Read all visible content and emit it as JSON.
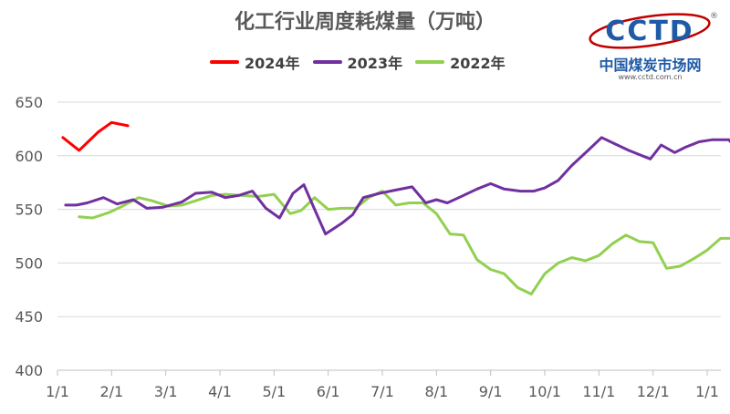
{
  "chart_data": {
    "type": "line",
    "title": "化工行业周度耗煤量（万吨）",
    "xlabel": "",
    "ylabel": "",
    "x_tick_labels": [
      "1/1",
      "2/1",
      "3/1",
      "4/1",
      "5/1",
      "6/1",
      "7/1",
      "8/1",
      "9/1",
      "10/1",
      "11/1",
      "12/1",
      "1/1"
    ],
    "ylim": [
      400,
      650
    ],
    "y_ticks": [
      400,
      450,
      500,
      550,
      600,
      650
    ],
    "grid": true,
    "legend_position": "top-center",
    "series": [
      {
        "name": "2024年",
        "color": "#ff0000",
        "points": [
          [
            0.1,
            617
          ],
          [
            0.4,
            605
          ],
          [
            0.75,
            622
          ],
          [
            1.0,
            631
          ],
          [
            1.3,
            628
          ]
        ]
      },
      {
        "name": "2023年",
        "color": "#7030a0",
        "points": [
          [
            0.15,
            554
          ],
          [
            0.35,
            554
          ],
          [
            0.55,
            556
          ],
          [
            0.85,
            561
          ],
          [
            1.1,
            555
          ],
          [
            1.4,
            559
          ],
          [
            1.65,
            551
          ],
          [
            1.95,
            552
          ],
          [
            2.3,
            557
          ],
          [
            2.55,
            565
          ],
          [
            2.85,
            566
          ],
          [
            3.1,
            561
          ],
          [
            3.35,
            563
          ],
          [
            3.6,
            567
          ],
          [
            3.85,
            551
          ],
          [
            4.1,
            542
          ],
          [
            4.35,
            565
          ],
          [
            4.55,
            573
          ],
          [
            4.75,
            550
          ],
          [
            4.95,
            527
          ],
          [
            5.25,
            537
          ],
          [
            5.45,
            545
          ],
          [
            5.65,
            561
          ],
          [
            5.95,
            565
          ],
          [
            6.25,
            568
          ],
          [
            6.55,
            571
          ],
          [
            6.8,
            556
          ],
          [
            7.0,
            559
          ],
          [
            7.2,
            556
          ],
          [
            7.5,
            563
          ],
          [
            7.75,
            569
          ],
          [
            8.0,
            574
          ],
          [
            8.25,
            569
          ],
          [
            8.55,
            567
          ],
          [
            8.8,
            567
          ],
          [
            9.0,
            570
          ],
          [
            9.25,
            577
          ],
          [
            9.5,
            591
          ],
          [
            9.8,
            605
          ],
          [
            10.05,
            617
          ],
          [
            10.3,
            611
          ],
          [
            10.55,
            605
          ],
          [
            10.75,
            601
          ],
          [
            10.95,
            597
          ],
          [
            11.15,
            610
          ],
          [
            11.4,
            603
          ],
          [
            11.6,
            608
          ],
          [
            11.85,
            613
          ],
          [
            12.1,
            615
          ],
          [
            12.4,
            615
          ],
          [
            12.6,
            603
          ],
          [
            12.85,
            607
          ],
          [
            13.0,
            609
          ],
          [
            13.1,
            609
          ]
        ]
      },
      {
        "name": "2022年",
        "color": "#92d050",
        "points": [
          [
            0.4,
            543
          ],
          [
            0.65,
            542
          ],
          [
            0.95,
            547
          ],
          [
            1.2,
            553
          ],
          [
            1.5,
            561
          ],
          [
            1.75,
            558
          ],
          [
            2.05,
            553
          ],
          [
            2.3,
            554
          ],
          [
            2.55,
            558
          ],
          [
            2.85,
            563
          ],
          [
            3.1,
            564
          ],
          [
            3.4,
            563
          ],
          [
            3.7,
            562
          ],
          [
            4.0,
            564
          ],
          [
            4.3,
            546
          ],
          [
            4.5,
            549
          ],
          [
            4.75,
            561
          ],
          [
            5.0,
            550
          ],
          [
            5.25,
            551
          ],
          [
            5.5,
            551
          ],
          [
            5.75,
            561
          ],
          [
            6.0,
            567
          ],
          [
            6.25,
            554
          ],
          [
            6.5,
            556
          ],
          [
            6.75,
            556
          ],
          [
            7.0,
            546
          ],
          [
            7.25,
            527
          ],
          [
            7.5,
            526
          ],
          [
            7.75,
            503
          ],
          [
            8.0,
            494
          ],
          [
            8.25,
            490
          ],
          [
            8.5,
            477
          ],
          [
            8.75,
            471
          ],
          [
            9.0,
            490
          ],
          [
            9.25,
            500
          ],
          [
            9.5,
            505
          ],
          [
            9.75,
            502
          ],
          [
            10.0,
            507
          ],
          [
            10.25,
            518
          ],
          [
            10.5,
            526
          ],
          [
            10.75,
            520
          ],
          [
            11.0,
            519
          ],
          [
            11.25,
            495
          ],
          [
            11.5,
            497
          ],
          [
            11.75,
            504
          ],
          [
            12.0,
            512
          ],
          [
            12.25,
            523
          ],
          [
            12.5,
            523
          ],
          [
            12.75,
            539
          ],
          [
            13.0,
            551
          ],
          [
            13.25,
            562
          ]
        ]
      }
    ]
  },
  "logo": {
    "brand": "CCTD",
    "subtitle": "中国煤炭市场网",
    "url": "www.cctd.com.cn",
    "registered_mark": "®"
  }
}
